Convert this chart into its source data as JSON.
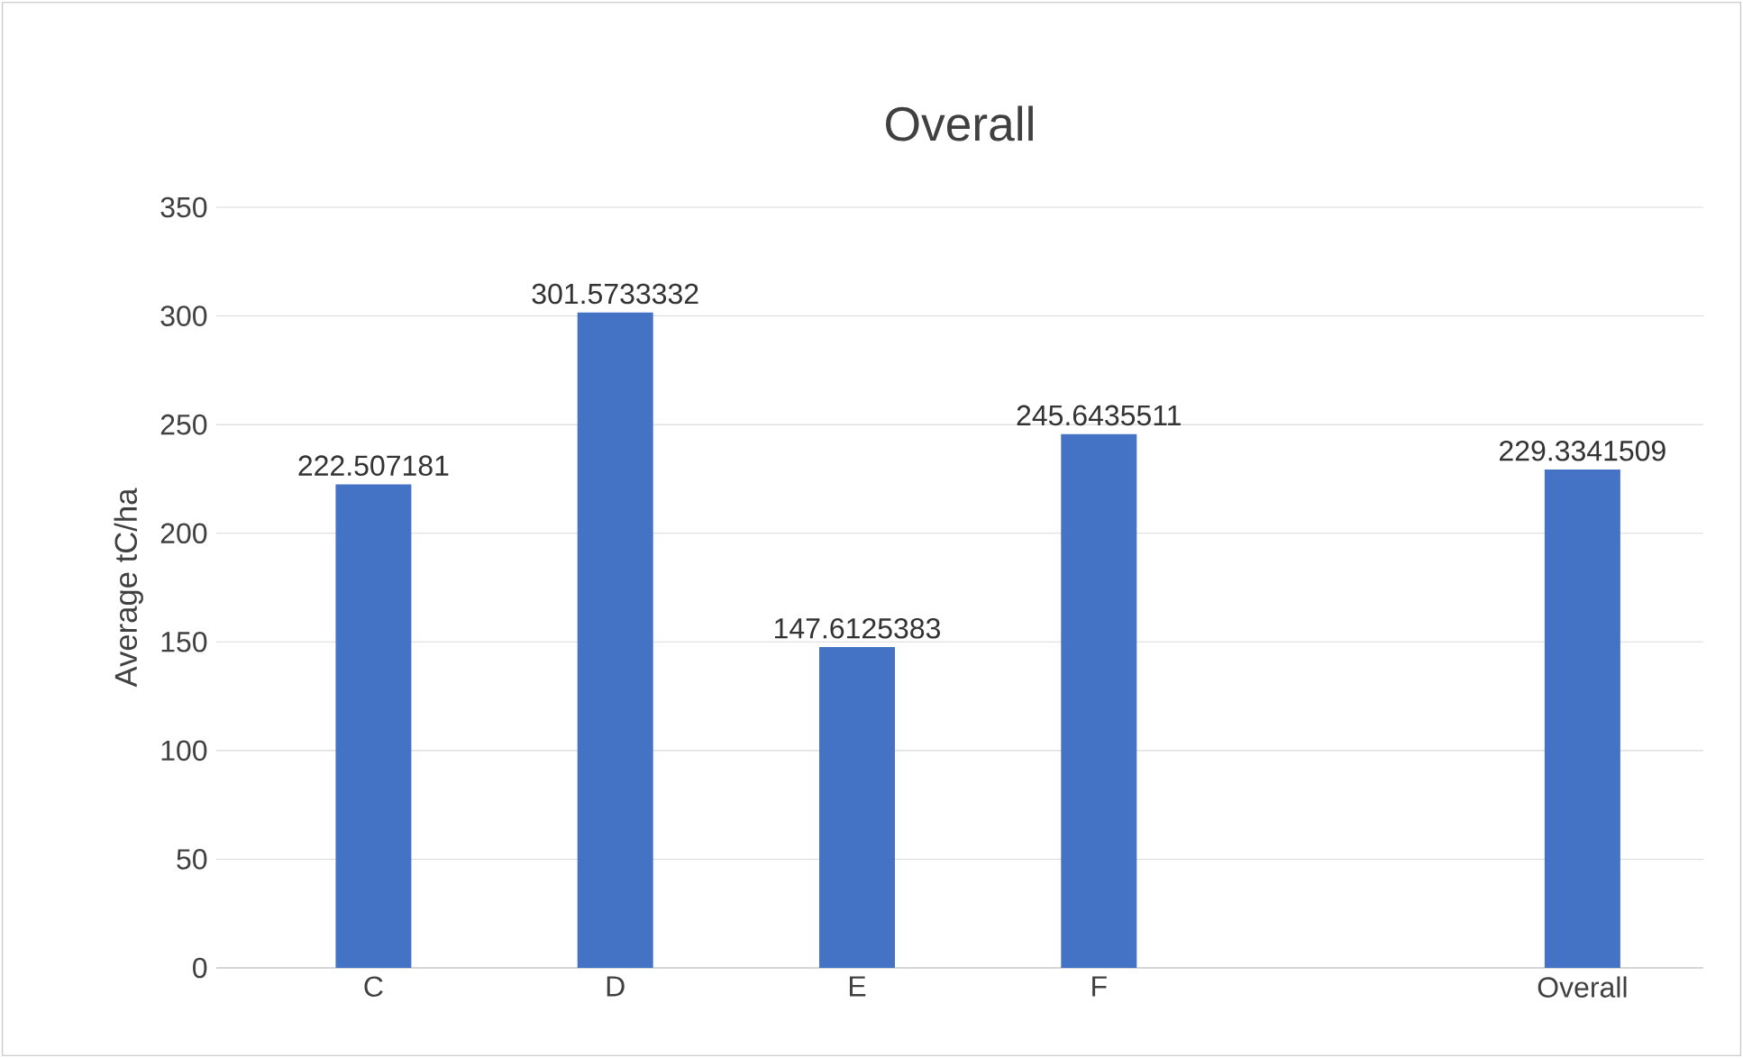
{
  "chart_data": {
    "type": "bar",
    "title": "Overall",
    "ylabel": "Average tC/ha",
    "categories": [
      "C",
      "D",
      "E",
      "F",
      null,
      "Overall"
    ],
    "values": [
      222.507181,
      301.5733332,
      147.6125383,
      245.6435511,
      null,
      229.3341509
    ],
    "color": "#4472c4",
    "ylim": [
      0,
      350
    ],
    "yticks": [
      0,
      50,
      100,
      150,
      200,
      250,
      300,
      350
    ],
    "grid": "y",
    "data_labels": true
  }
}
